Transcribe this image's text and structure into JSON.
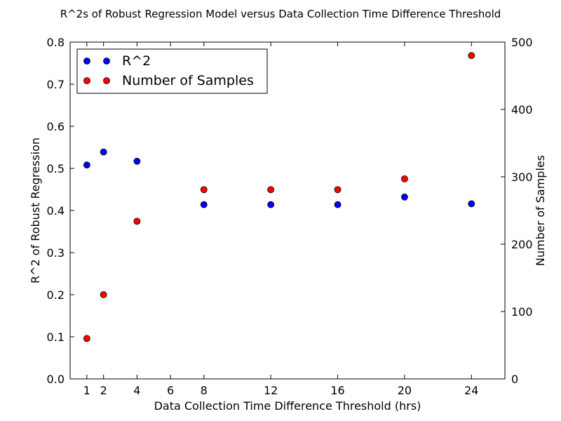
{
  "chart_data": {
    "type": "scatter",
    "title": "R^2s of Robust Regression Model versus Data Collection Time Difference Threshold",
    "xlabel": "Data Collection Time Difference Threshold (hrs)",
    "ylabel": "R^2 of Robust Regression",
    "y2label": "Number of Samples",
    "xlim": [
      0,
      26
    ],
    "ylim": [
      0,
      0.8
    ],
    "y2lim": [
      0,
      500
    ],
    "xticks": [
      1,
      2,
      4,
      6,
      8,
      12,
      16,
      20,
      24
    ],
    "xtick_labels": [
      "1",
      "2",
      "4",
      "6",
      "8",
      "12",
      "16",
      "20",
      "24"
    ],
    "yticks": [
      0.0,
      0.1,
      0.2,
      0.3,
      0.4,
      0.5,
      0.6,
      0.7,
      0.8
    ],
    "ytick_labels": [
      "0.0",
      "0.1",
      "0.2",
      "0.3",
      "0.4",
      "0.5",
      "0.6",
      "0.7",
      "0.8"
    ],
    "y2ticks": [
      0,
      100,
      200,
      300,
      400,
      500
    ],
    "y2tick_labels": [
      "0",
      "100",
      "200",
      "300",
      "400",
      "500"
    ],
    "grid": false,
    "legend_position": "top-left",
    "series": [
      {
        "name": "R^2",
        "axis": "left",
        "color": "#0000ff",
        "x": [
          1,
          2,
          4,
          8,
          12,
          16,
          20,
          24
        ],
        "y": [
          0.508,
          0.539,
          0.517,
          0.414,
          0.414,
          0.414,
          0.432,
          0.416
        ]
      },
      {
        "name": "Number of Samples",
        "axis": "right",
        "color": "#ff0000",
        "x": [
          1,
          2,
          4,
          8,
          12,
          16,
          20,
          24
        ],
        "y": [
          60,
          125,
          234,
          281,
          281,
          281,
          297,
          480
        ]
      }
    ]
  }
}
